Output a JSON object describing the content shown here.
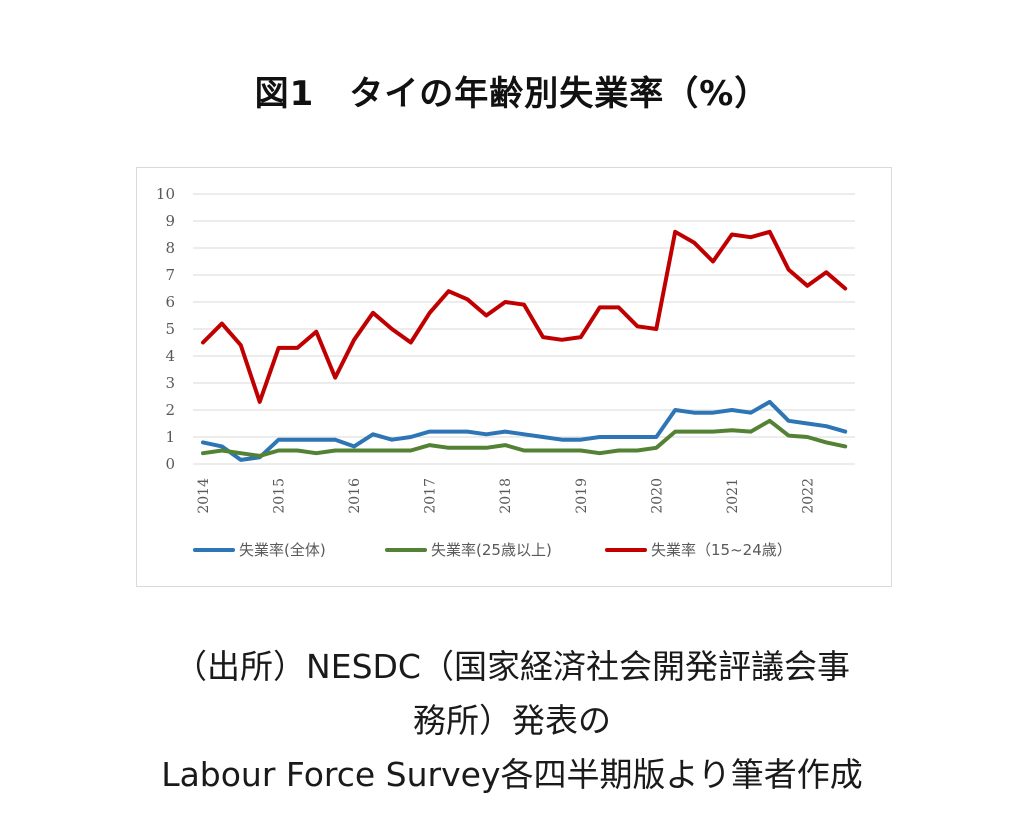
{
  "title": "図1　タイの年齢別失業率（%）",
  "source": {
    "line1": "（出所）NESDC（国家経済社会開発評議会事",
    "line2": "務所）発表の",
    "line3": "Labour Force Survey各四半期版より筆者作成"
  },
  "chart_data": {
    "type": "line",
    "title": "",
    "xlabel": "",
    "ylabel": "",
    "ylim": [
      0,
      10
    ],
    "yticks": [
      "0",
      "1",
      "2",
      "3",
      "4",
      "5",
      "6",
      "7",
      "8",
      "9",
      "10"
    ],
    "xticks": [
      "2014",
      "2015",
      "2016",
      "2017",
      "2018",
      "2019",
      "2020",
      "2021",
      "2022"
    ],
    "grid": "horizontal",
    "legend_position": "bottom",
    "x": [
      "2014Q1",
      "2014Q2",
      "2014Q3",
      "2014Q4",
      "2015Q1",
      "2015Q2",
      "2015Q3",
      "2015Q4",
      "2016Q1",
      "2016Q2",
      "2016Q3",
      "2016Q4",
      "2017Q1",
      "2017Q2",
      "2017Q3",
      "2017Q4",
      "2018Q1",
      "2018Q2",
      "2018Q3",
      "2018Q4",
      "2019Q1",
      "2019Q2",
      "2019Q3",
      "2019Q4",
      "2020Q1",
      "2020Q2",
      "2020Q3",
      "2020Q4",
      "2021Q1",
      "2021Q2",
      "2021Q3",
      "2021Q4",
      "2022Q1",
      "2022Q2",
      "2022Q3"
    ],
    "series": [
      {
        "name": "失業率(全体)",
        "color": "#2e75b6",
        "values": [
          0.8,
          0.65,
          0.15,
          0.25,
          0.9,
          0.9,
          0.9,
          0.9,
          0.65,
          1.1,
          0.9,
          1.0,
          1.2,
          1.2,
          1.2,
          1.1,
          1.2,
          1.1,
          1.0,
          0.9,
          0.9,
          1.0,
          1.0,
          1.0,
          1.0,
          2.0,
          1.9,
          1.9,
          2.0,
          1.9,
          2.3,
          1.6,
          1.5,
          1.4,
          1.2
        ]
      },
      {
        "name": "失業率(25歳以上)",
        "color": "#548235",
        "values": [
          0.4,
          0.5,
          0.4,
          0.3,
          0.5,
          0.5,
          0.4,
          0.5,
          0.5,
          0.5,
          0.5,
          0.5,
          0.7,
          0.6,
          0.6,
          0.6,
          0.7,
          0.5,
          0.5,
          0.5,
          0.5,
          0.4,
          0.5,
          0.5,
          0.6,
          1.2,
          1.2,
          1.2,
          1.25,
          1.2,
          1.6,
          1.05,
          1.0,
          0.8,
          0.65
        ]
      },
      {
        "name": "失業率（15~24歳）",
        "color": "#c00000",
        "values": [
          4.5,
          5.2,
          4.4,
          2.3,
          4.3,
          4.3,
          4.9,
          3.2,
          4.6,
          5.6,
          5.0,
          4.5,
          5.6,
          6.4,
          6.1,
          5.5,
          6.0,
          5.9,
          4.7,
          4.6,
          4.7,
          5.8,
          5.8,
          5.1,
          5.0,
          8.6,
          8.2,
          7.5,
          8.5,
          8.4,
          8.6,
          7.2,
          6.6,
          7.1,
          6.5
        ]
      }
    ]
  }
}
